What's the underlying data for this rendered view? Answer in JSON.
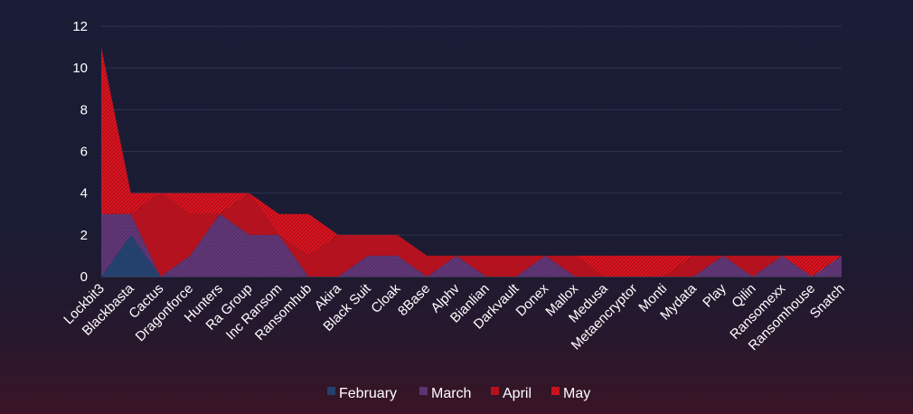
{
  "chart_data": {
    "type": "area",
    "stacked": true,
    "title": "",
    "xlabel": "",
    "ylabel": "",
    "ylim": [
      0,
      12
    ],
    "yticks": [
      0,
      2,
      4,
      6,
      8,
      10,
      12
    ],
    "grid": true,
    "legend_position": "bottom",
    "categories": [
      "Lockbit3",
      "Blackbasta",
      "Cactus",
      "Dragonforce",
      "Hunters",
      "Ra Group",
      "Inc Ransom",
      "Ransomhub",
      "Akira",
      "Black Suit",
      "Cloak",
      "8Base",
      "Alphv",
      "Bianlian",
      "Darkvault",
      "Donex",
      "Mallox",
      "Medusa",
      "Metaencryptor",
      "Monti",
      "Mydata",
      "Play",
      "Qilin",
      "Ransomexx",
      "Ransomhouse",
      "Snatch"
    ],
    "series": [
      {
        "name": "February",
        "color": "#24416e",
        "values": [
          0,
          2,
          0,
          0,
          0,
          0,
          0,
          0,
          0,
          0,
          0,
          0,
          0,
          0,
          0,
          0,
          0,
          0,
          0,
          0,
          0,
          0,
          0,
          0,
          0,
          0
        ]
      },
      {
        "name": "March",
        "color": "#5b2f6b",
        "values": [
          3,
          1,
          0,
          1,
          3,
          2,
          2,
          0,
          0,
          1,
          1,
          0,
          1,
          0,
          0,
          1,
          0,
          0,
          0,
          0,
          0,
          1,
          0,
          1,
          0,
          1
        ]
      },
      {
        "name": "April",
        "color": "#b3121e",
        "values": [
          0,
          0,
          4,
          2,
          0,
          2,
          0,
          1,
          2,
          1,
          1,
          1,
          0,
          1,
          1,
          0,
          1,
          0,
          0,
          0,
          1,
          0,
          1,
          0,
          0,
          0
        ]
      },
      {
        "name": "May",
        "color": "#e0141e",
        "values": [
          8,
          1,
          0,
          1,
          1,
          0,
          1,
          2,
          0,
          0,
          0,
          0,
          0,
          0,
          0,
          0,
          0,
          1,
          1,
          1,
          0,
          0,
          0,
          0,
          1,
          0
        ]
      }
    ]
  }
}
